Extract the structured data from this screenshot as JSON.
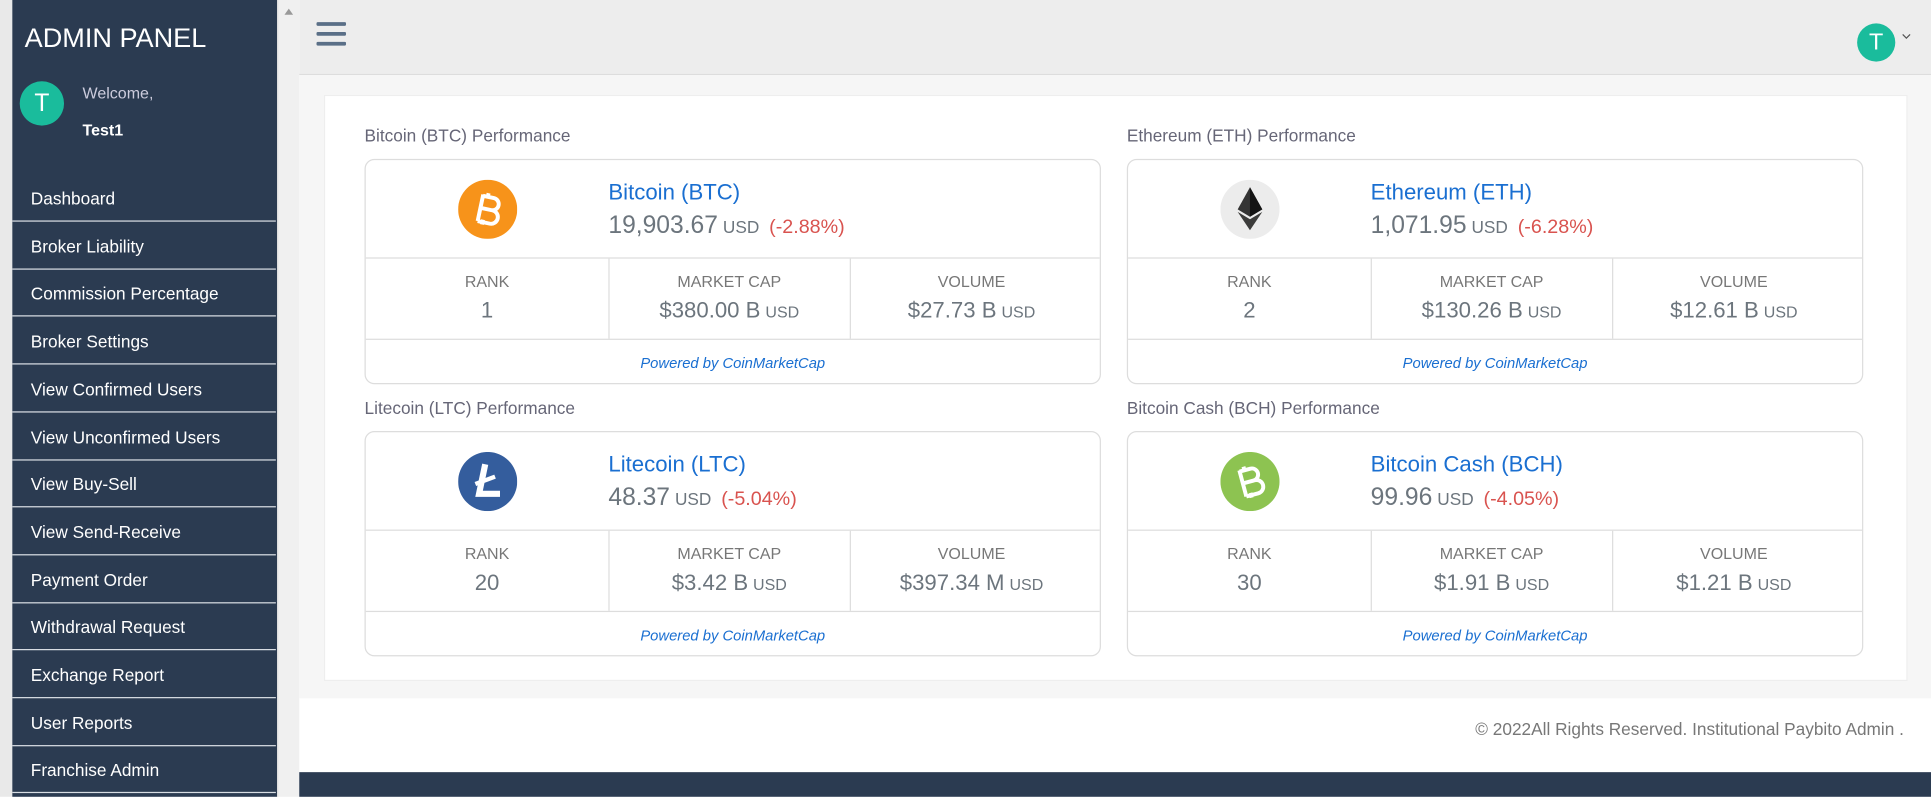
{
  "sidebar": {
    "title": "ADMIN PANEL",
    "avatar": "T",
    "welcome": "Welcome,",
    "user": "Test1",
    "menu": [
      "Dashboard",
      "Broker Liability",
      "Commission Percentage",
      "Broker Settings",
      "View Confirmed Users",
      "View Unconfirmed Users",
      "View Buy-Sell",
      "View Send-Receive",
      "Payment Order",
      "Withdrawal Request",
      "Exchange Report",
      "User Reports",
      "Franchise Admin"
    ]
  },
  "topbar": {
    "avatar": "T"
  },
  "stat_labels": [
    "RANK",
    "MARKET CAP",
    "VOLUME"
  ],
  "powered_by": "Powered by CoinMarketCap",
  "coins": [
    {
      "heading": "Bitcoin (BTC) Performance",
      "name": "Bitcoin (BTC)",
      "price": "19,903.67",
      "currency": "USD",
      "change": "(-2.88%)",
      "rank": "1",
      "market_cap": "$380.00 B",
      "market_cap_unit": "USD",
      "volume": "$27.73 B",
      "volume_unit": "USD"
    },
    {
      "heading": "Ethereum (ETH) Performance",
      "name": "Ethereum (ETH)",
      "price": "1,071.95",
      "currency": "USD",
      "change": "(-6.28%)",
      "rank": "2",
      "market_cap": "$130.26 B",
      "market_cap_unit": "USD",
      "volume": "$12.61 B",
      "volume_unit": "USD"
    },
    {
      "heading": "Litecoin (LTC) Performance",
      "name": "Litecoin (LTC)",
      "price": "48.37",
      "currency": "USD",
      "change": "(-5.04%)",
      "rank": "20",
      "market_cap": "$3.42 B",
      "market_cap_unit": "USD",
      "volume": "$397.34 M",
      "volume_unit": "USD"
    },
    {
      "heading": "Bitcoin Cash (BCH) Performance",
      "name": "Bitcoin Cash (BCH)",
      "price": "99.96",
      "currency": "USD",
      "change": "(-4.05%)",
      "rank": "30",
      "market_cap": "$1.91 B",
      "market_cap_unit": "USD",
      "volume": "$1.21 B",
      "volume_unit": "USD"
    }
  ],
  "footer": "© 2022All Rights Reserved. Institutional Paybito Admin ."
}
